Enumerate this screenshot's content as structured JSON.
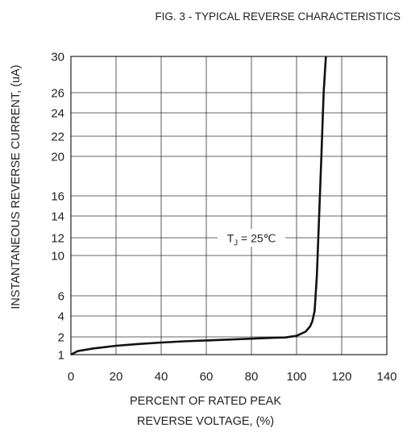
{
  "chart_data": {
    "type": "line",
    "title": "FIG. 3 - TYPICAL REVERSE CHARACTERISTICS",
    "xlabel_lines": [
      "PERCENT OF RATED PEAK",
      "REVERSE VOLTAGE, (%)"
    ],
    "ylabel": "INSTANTANEOUS REVERSE CURRENT, (uA)",
    "xlim": [
      0,
      140
    ],
    "x_ticks": [
      0,
      20,
      40,
      60,
      80,
      100,
      120,
      140
    ],
    "y_ticks": [
      1,
      2,
      4,
      6,
      10,
      12,
      14,
      16,
      20,
      22,
      24,
      26,
      30
    ],
    "y_gridlines": [
      2,
      4,
      6,
      10,
      12,
      14,
      16,
      20,
      22,
      24,
      26
    ],
    "y_scale": "non-linear (tick spacing as printed)",
    "grid": true,
    "annotation": {
      "label": "T",
      "subscript": "J",
      "rest": " = 25℃",
      "at": {
        "x": 80,
        "y": 12
      }
    },
    "series": [
      {
        "color": "#111111",
        "points": [
          [
            0,
            1.0
          ],
          [
            3,
            1.2
          ],
          [
            10,
            1.35
          ],
          [
            20,
            1.5
          ],
          [
            30,
            1.6
          ],
          [
            40,
            1.68
          ],
          [
            50,
            1.75
          ],
          [
            60,
            1.8
          ],
          [
            70,
            1.85
          ],
          [
            80,
            1.9
          ],
          [
            90,
            1.95
          ],
          [
            95,
            1.97
          ],
          [
            100,
            2.1
          ],
          [
            104,
            2.5
          ],
          [
            106,
            3.0
          ],
          [
            107,
            3.5
          ],
          [
            108,
            4.5
          ],
          [
            109,
            8
          ],
          [
            110,
            14
          ],
          [
            111,
            20
          ],
          [
            112,
            26
          ],
          [
            113,
            30
          ]
        ]
      }
    ]
  }
}
